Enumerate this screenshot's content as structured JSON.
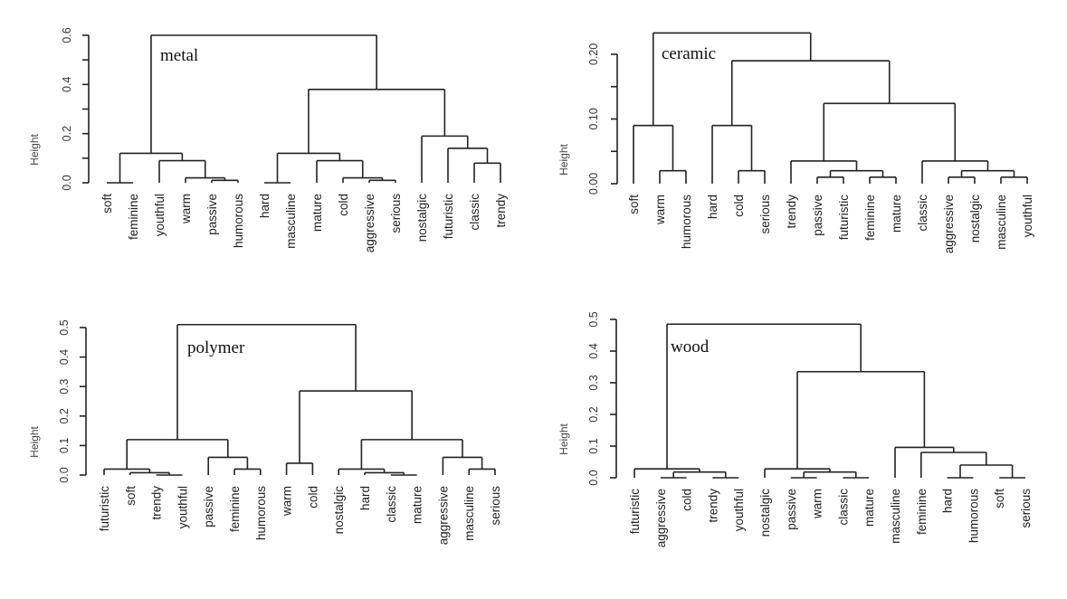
{
  "chart_data": [
    {
      "type": "dendrogram",
      "title": "metal",
      "ylabel": "Height",
      "xlabel": "",
      "ylim": [
        0,
        0.6
      ],
      "yticks": [
        0.0,
        0.1,
        0.2,
        0.3,
        0.4,
        0.5,
        0.6
      ],
      "ytick_labels": [
        "0.0",
        "",
        "0.2",
        "",
        "0.4",
        "",
        "0.6"
      ],
      "leaves": [
        "soft",
        "feminine",
        "youthful",
        "warm",
        "passive",
        "humorous",
        "hard",
        "masculine",
        "mature",
        "cold",
        "aggressive",
        "serious",
        "nostalgic",
        "futuristic",
        "classic",
        "trendy"
      ],
      "tree": {
        "h": 0.6,
        "c": [
          {
            "h": 0.12,
            "c": [
              {
                "h": 0.0,
                "c": [
                  "soft",
                  "feminine"
                ]
              },
              {
                "h": 0.09,
                "c": [
                  "youthful",
                  {
                    "h": 0.02,
                    "c": [
                      "warm",
                      {
                        "h": 0.01,
                        "c": [
                          "passive",
                          "humorous"
                        ]
                      }
                    ]
                  }
                ]
              }
            ]
          },
          {
            "h": 0.38,
            "c": [
              {
                "h": 0.12,
                "c": [
                  {
                    "h": 0.0,
                    "c": [
                      "hard",
                      "masculine"
                    ]
                  },
                  {
                    "h": 0.09,
                    "c": [
                      "mature",
                      {
                        "h": 0.02,
                        "c": [
                          "cold",
                          {
                            "h": 0.01,
                            "c": [
                              "aggressive",
                              "serious"
                            ]
                          }
                        ]
                      }
                    ]
                  }
                ]
              },
              {
                "h": 0.19,
                "c": [
                  "nostalgic",
                  {
                    "h": 0.14,
                    "c": [
                      "futuristic",
                      {
                        "h": 0.08,
                        "c": [
                          "classic",
                          "trendy"
                        ]
                      }
                    ]
                  }
                ]
              }
            ]
          }
        ]
      }
    },
    {
      "type": "dendrogram",
      "title": "ceramic",
      "ylabel": "Height",
      "xlabel": "",
      "ylim": [
        0,
        0.2
      ],
      "yticks": [
        0.0,
        0.05,
        0.1,
        0.15,
        0.2
      ],
      "ytick_labels": [
        "0.00",
        "",
        "0.10",
        "",
        "0.20"
      ],
      "leaves": [
        "soft",
        "warm",
        "humorous",
        "hard",
        "cold",
        "serious",
        "trendy",
        "passive",
        "futuristic",
        "feminine",
        "mature",
        "classic",
        "aggressive",
        "nostalgic",
        "masculine",
        "youthful"
      ],
      "tree": {
        "h": 0.233,
        "c": [
          {
            "h": 0.09,
            "c": [
              "soft",
              {
                "h": 0.02,
                "c": [
                  "warm",
                  "humorous"
                ]
              }
            ]
          },
          {
            "h": 0.19,
            "c": [
              {
                "h": 0.09,
                "c": [
                  "hard",
                  {
                    "h": 0.02,
                    "c": [
                      "cold",
                      "serious"
                    ]
                  }
                ]
              },
              {
                "h": 0.124,
                "c": [
                  {
                    "h": 0.035,
                    "c": [
                      "trendy",
                      {
                        "h": 0.02,
                        "c": [
                          {
                            "h": 0.01,
                            "c": [
                              "passive",
                              "futuristic"
                            ]
                          },
                          {
                            "h": 0.01,
                            "c": [
                              "feminine",
                              "mature"
                            ]
                          }
                        ]
                      }
                    ]
                  },
                  {
                    "h": 0.035,
                    "c": [
                      "classic",
                      {
                        "h": 0.02,
                        "c": [
                          {
                            "h": 0.01,
                            "c": [
                              "aggressive",
                              "nostalgic"
                            ]
                          },
                          {
                            "h": 0.01,
                            "c": [
                              "masculine",
                              "youthful"
                            ]
                          }
                        ]
                      }
                    ]
                  }
                ]
              }
            ]
          }
        ]
      }
    },
    {
      "type": "dendrogram",
      "title": "polymer",
      "ylabel": "Height",
      "xlabel": "",
      "ylim": [
        0,
        0.5
      ],
      "yticks": [
        0.0,
        0.1,
        0.2,
        0.3,
        0.4,
        0.5
      ],
      "ytick_labels": [
        "0.0",
        "0.1",
        "0.2",
        "0.3",
        "0.4",
        "0.5"
      ],
      "leaves": [
        "futuristic",
        "soft",
        "trendy",
        "youthful",
        "passive",
        "feminine",
        "humorous",
        "warm",
        "cold",
        "nostalgic",
        "hard",
        "classic",
        "mature",
        "aggressive",
        "masculine",
        "serious"
      ],
      "tree": {
        "h": 0.51,
        "c": [
          {
            "h": 0.12,
            "c": [
              {
                "h": 0.02,
                "c": [
                  "futuristic",
                  {
                    "h": 0.008,
                    "c": [
                      "soft",
                      {
                        "h": 0.0,
                        "c": [
                          "trendy",
                          "youthful"
                        ]
                      }
                    ]
                  }
                ]
              },
              {
                "h": 0.06,
                "c": [
                  "passive",
                  {
                    "h": 0.02,
                    "c": [
                      "feminine",
                      "humorous"
                    ]
                  }
                ]
              }
            ]
          },
          {
            "h": 0.285,
            "c": [
              {
                "h": 0.04,
                "c": [
                  "warm",
                  "cold"
                ]
              },
              {
                "h": 0.12,
                "c": [
                  {
                    "h": 0.02,
                    "c": [
                      "nostalgic",
                      {
                        "h": 0.008,
                        "c": [
                          "hard",
                          {
                            "h": 0.0,
                            "c": [
                              "classic",
                              "mature"
                            ]
                          }
                        ]
                      }
                    ]
                  },
                  {
                    "h": 0.06,
                    "c": [
                      "aggressive",
                      {
                        "h": 0.02,
                        "c": [
                          "masculine",
                          "serious"
                        ]
                      }
                    ]
                  }
                ]
              }
            ]
          }
        ]
      }
    },
    {
      "type": "dendrogram",
      "title": "wood",
      "ylabel": "Height",
      "xlabel": "",
      "ylim": [
        0,
        0.5
      ],
      "yticks": [
        0.0,
        0.1,
        0.2,
        0.3,
        0.4,
        0.5
      ],
      "ytick_labels": [
        "0.0",
        "0.1",
        "0.2",
        "0.3",
        "0.4",
        "0.5"
      ],
      "leaves": [
        "futuristic",
        "aggressive",
        "cold",
        "trendy",
        "youthful",
        "nostalgic",
        "passive",
        "warm",
        "classic",
        "mature",
        "masculine",
        "feminine",
        "hard",
        "humorous",
        "soft",
        "serious"
      ],
      "tree": {
        "h": 0.485,
        "c": [
          {
            "h": 0.028,
            "c": [
              "futuristic",
              {
                "h": 0.018,
                "c": [
                  {
                    "h": 0.0,
                    "c": [
                      "aggressive",
                      "cold"
                    ]
                  },
                  {
                    "h": 0.0,
                    "c": [
                      "trendy",
                      "youthful"
                    ]
                  }
                ]
              }
            ]
          },
          {
            "h": 0.335,
            "c": [
              {
                "h": 0.028,
                "c": [
                  "nostalgic",
                  {
                    "h": 0.018,
                    "c": [
                      {
                        "h": 0.0,
                        "c": [
                          "passive",
                          "warm"
                        ]
                      },
                      {
                        "h": 0.0,
                        "c": [
                          "classic",
                          "mature"
                        ]
                      }
                    ]
                  }
                ]
              },
              {
                "h": 0.096,
                "c": [
                  "masculine",
                  {
                    "h": 0.08,
                    "c": [
                      "feminine",
                      {
                        "h": 0.04,
                        "c": [
                          {
                            "h": 0.0,
                            "c": [
                              "hard",
                              "humorous"
                            ]
                          },
                          {
                            "h": 0.0,
                            "c": [
                              "soft",
                              "serious"
                            ]
                          }
                        ]
                      }
                    ]
                  }
                ]
              }
            ]
          }
        ]
      }
    }
  ]
}
